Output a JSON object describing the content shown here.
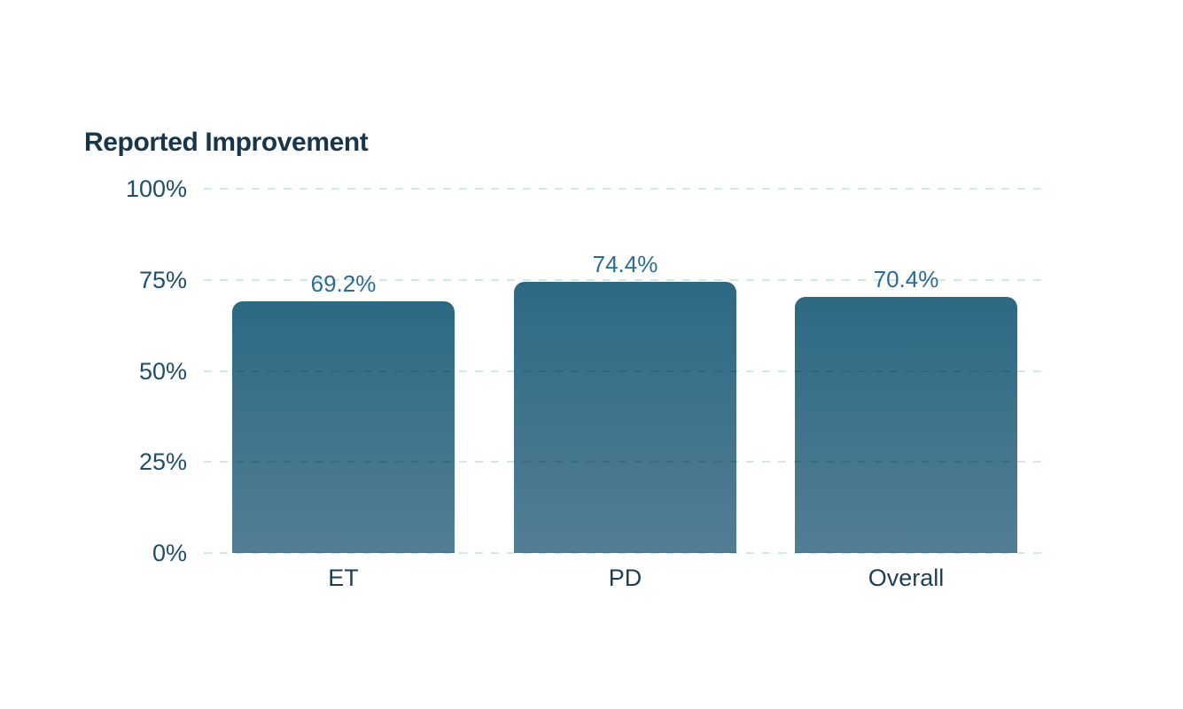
{
  "page": {
    "background_color": "#ffffff"
  },
  "chart_data": {
    "type": "bar",
    "title": "Reported Improvement",
    "categories": [
      "ET",
      "PD",
      "Overall"
    ],
    "values": [
      69.2,
      74.4,
      70.4
    ],
    "value_labels": [
      "69.2%",
      "74.4%",
      "70.4%"
    ],
    "xlabel": "",
    "ylabel": "",
    "ylim": [
      0,
      100
    ],
    "ytick_values": [
      0,
      25,
      50,
      75,
      100
    ],
    "ytick_labels": [
      "0%",
      "25%",
      "50%",
      "75%",
      "100%"
    ],
    "grid": "horizontal-dashed",
    "legend_position": "none",
    "colors": {
      "bar_gradient_top": "#2d6983",
      "bar_gradient_bottom": "#527e95",
      "gridline": "#cfe8ea",
      "title_text": "#17354b",
      "ytick_text": "#1e4e6d",
      "xtick_text": "#1d3e57",
      "value_text": "#2a6d94"
    }
  }
}
